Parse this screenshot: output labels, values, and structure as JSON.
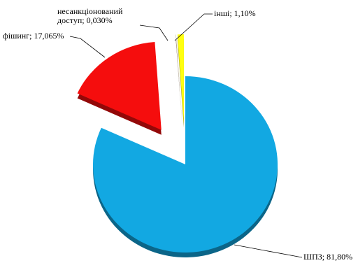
{
  "chart_data": {
    "type": "pie",
    "values": [
      81.8,
      17.065,
      0.03,
      1.1
    ],
    "value_labels": [
      "ШПЗ; 81,80%",
      "фішинг; 17,065%",
      "несанкціонований доступ; 0,030%",
      "інші; 1,10%"
    ],
    "colors": [
      "#12a8e2",
      "#f50d0d",
      "#7a5a2a",
      "#ffff10"
    ],
    "exploded": [
      false,
      true,
      true,
      true
    ]
  }
}
